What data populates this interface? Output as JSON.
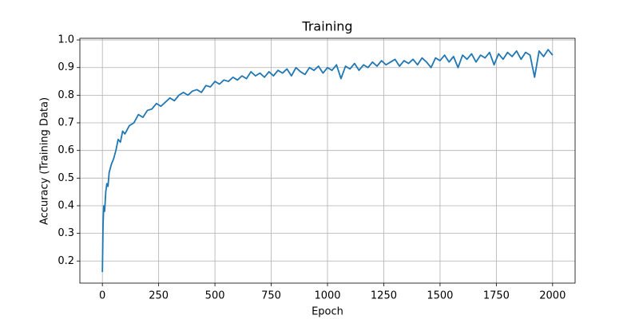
{
  "chart_data": {
    "type": "line",
    "title": "Training",
    "x_label": "Epoch",
    "y_label": "Accuracy (Training Data)",
    "x": [
      0,
      3,
      6,
      10,
      15,
      20,
      25,
      30,
      40,
      50,
      60,
      70,
      80,
      90,
      100,
      120,
      140,
      160,
      180,
      200,
      220,
      240,
      260,
      280,
      300,
      320,
      340,
      360,
      380,
      400,
      420,
      440,
      460,
      480,
      500,
      520,
      540,
      560,
      580,
      600,
      620,
      640,
      660,
      680,
      700,
      720,
      740,
      760,
      780,
      800,
      820,
      840,
      860,
      880,
      900,
      920,
      940,
      960,
      980,
      1000,
      1020,
      1040,
      1060,
      1080,
      1100,
      1120,
      1140,
      1160,
      1180,
      1200,
      1220,
      1240,
      1260,
      1280,
      1300,
      1320,
      1340,
      1360,
      1380,
      1400,
      1420,
      1440,
      1460,
      1480,
      1500,
      1520,
      1540,
      1560,
      1580,
      1600,
      1620,
      1640,
      1660,
      1680,
      1700,
      1720,
      1740,
      1760,
      1780,
      1800,
      1820,
      1840,
      1860,
      1880,
      1900,
      1920,
      1940,
      1960,
      1980,
      2000
    ],
    "series": [
      {
        "color": "#1f77b4",
        "values": [
          0.16,
          0.33,
          0.4,
          0.38,
          0.45,
          0.48,
          0.47,
          0.52,
          0.55,
          0.57,
          0.6,
          0.64,
          0.63,
          0.67,
          0.66,
          0.69,
          0.7,
          0.73,
          0.72,
          0.745,
          0.75,
          0.77,
          0.76,
          0.775,
          0.79,
          0.78,
          0.8,
          0.81,
          0.8,
          0.815,
          0.82,
          0.81,
          0.835,
          0.83,
          0.85,
          0.84,
          0.855,
          0.85,
          0.865,
          0.855,
          0.87,
          0.86,
          0.885,
          0.87,
          0.88,
          0.865,
          0.885,
          0.87,
          0.89,
          0.88,
          0.895,
          0.87,
          0.9,
          0.885,
          0.875,
          0.9,
          0.89,
          0.905,
          0.88,
          0.9,
          0.89,
          0.91,
          0.86,
          0.905,
          0.895,
          0.915,
          0.89,
          0.91,
          0.9,
          0.92,
          0.905,
          0.925,
          0.91,
          0.92,
          0.93,
          0.905,
          0.925,
          0.915,
          0.93,
          0.91,
          0.935,
          0.92,
          0.9,
          0.935,
          0.925,
          0.945,
          0.92,
          0.94,
          0.9,
          0.945,
          0.93,
          0.95,
          0.92,
          0.945,
          0.935,
          0.955,
          0.91,
          0.95,
          0.93,
          0.955,
          0.94,
          0.96,
          0.93,
          0.955,
          0.945,
          0.865,
          0.96,
          0.94,
          0.965,
          0.945
        ]
      }
    ],
    "xlim": [
      -100,
      2100
    ],
    "xticks": [
      0,
      250,
      500,
      750,
      1000,
      1250,
      1500,
      1750,
      2000
    ],
    "ylim": [
      0.12,
      1.006
    ],
    "yticks": [
      0.2,
      0.3,
      0.4,
      0.5,
      0.6,
      0.7,
      0.8,
      0.9,
      {
        "value": 1,
        "label": "1.0"
      }
    ],
    "grid": true
  }
}
